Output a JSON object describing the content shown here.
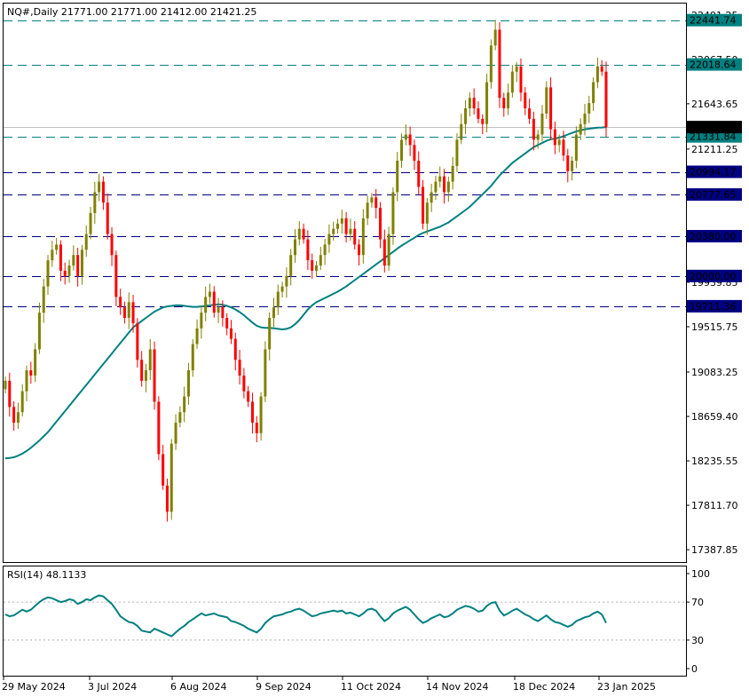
{
  "header": {
    "symbol_text": "NQ#,Daily  21771.00 21771.00 21412.00 21421.25",
    "rsi_label": "RSI(14) 48.1133"
  },
  "chart_data": [
    {
      "type": "candlestick",
      "symbol": "NQ#",
      "timeframe": "Daily",
      "ohlc_last": {
        "open": 21771.0,
        "high": 21771.0,
        "low": 21412.0,
        "close": 21421.25
      },
      "y_ticks": [
        22491.25,
        22067.5,
        21643.65,
        21211.25,
        20779.4,
        20355.55,
        19939.85,
        19515.75,
        19083.25,
        18659.4,
        18235.55,
        17811.7,
        17387.85
      ],
      "y_range": [
        17270,
        22600
      ],
      "x_ticks": [
        "29 May 2024",
        "3 Jul 2024",
        "6 Aug 2024",
        "9 Sep 2024",
        "11 Oct 2024",
        "14 Nov 2024",
        "18 Dec 2024",
        "23 Jan 2025"
      ],
      "levels": [
        {
          "value": 22441.74,
          "label": "22441.74",
          "color": "#008080"
        },
        {
          "value": 22018.64,
          "label": "22018.64",
          "color": "#008080"
        },
        {
          "value": 21331.84,
          "label": "21331.84",
          "color": "#008080"
        },
        {
          "value": 20994.17,
          "label": "20994.17",
          "color": "#000080"
        },
        {
          "value": 20777.65,
          "label": "20777.65",
          "color": "#000080"
        },
        {
          "value": 20380.0,
          "label": "20380.00",
          "color": "#000080"
        },
        {
          "value": 20000.0,
          "label": "20000.00",
          "color": "#000080"
        },
        {
          "value": 19711.36,
          "label": "19711.36",
          "color": "#000080"
        }
      ],
      "current_price": {
        "value": 21421.25,
        "label": "21421.25"
      },
      "colors": {
        "up": "#808000",
        "down": "#ff0000",
        "ma": "#008080",
        "grid": "#c0c0c0"
      },
      "closes": [
        19000,
        18750,
        18600,
        18700,
        18900,
        19100,
        19050,
        19300,
        19650,
        19900,
        20150,
        20250,
        20300,
        20050,
        20000,
        20100,
        20200,
        20000,
        20250,
        20400,
        20600,
        20800,
        20900,
        20700,
        20400,
        20200,
        19800,
        19700,
        19600,
        19750,
        19550,
        19200,
        19000,
        19100,
        19300,
        18800,
        18300,
        18000,
        17750,
        18400,
        18600,
        18700,
        18850,
        19100,
        19350,
        19500,
        19650,
        19800,
        19850,
        19650,
        19700,
        19600,
        19500,
        19400,
        19200,
        19050,
        18900,
        18800,
        18600,
        18500,
        18850,
        19300,
        19600,
        19700,
        19850,
        19900,
        20000,
        20200,
        20350,
        20450,
        20350,
        20150,
        20050,
        20100,
        20200,
        20300,
        20400,
        20450,
        20500,
        20550,
        20400,
        20450,
        20300,
        20200,
        20550,
        20700,
        20750,
        20650,
        20350,
        20100,
        20400,
        20800,
        21100,
        21300,
        21350,
        21250,
        21100,
        20850,
        20500,
        20700,
        20800,
        20900,
        20950,
        20800,
        20900,
        21050,
        21300,
        21450,
        21600,
        21700,
        21600,
        21500,
        21450,
        21850,
        22200,
        22350,
        21700,
        21600,
        21750,
        21950,
        22000,
        21750,
        21600,
        21500,
        21300,
        21350,
        21550,
        21800,
        21400,
        21250,
        21300,
        21150,
        21000,
        21100,
        21350,
        21450,
        21550,
        21650,
        21850,
        22000,
        21950,
        21420
      ],
      "ma_values": [
        18260,
        18263,
        18270,
        18285,
        18305,
        18330,
        18360,
        18395,
        18430,
        18470,
        18510,
        18560,
        18610,
        18660,
        18710,
        18760,
        18810,
        18860,
        18910,
        18960,
        19010,
        19060,
        19110,
        19160,
        19210,
        19260,
        19310,
        19360,
        19410,
        19460,
        19510,
        19540,
        19570,
        19600,
        19630,
        19660,
        19680,
        19700,
        19710,
        19715,
        19720,
        19720,
        19715,
        19710,
        19705,
        19705,
        19710,
        19715,
        19720,
        19725,
        19730,
        19725,
        19715,
        19700,
        19680,
        19655,
        19625,
        19590,
        19555,
        19525,
        19510,
        19505,
        19505,
        19500,
        19495,
        19490,
        19495,
        19510,
        19540,
        19580,
        19630,
        19680,
        19720,
        19750,
        19770,
        19790,
        19810,
        19830,
        19850,
        19875,
        19900,
        19930,
        19960,
        19990,
        20020,
        20050,
        20080,
        20110,
        20140,
        20170,
        20200,
        20230,
        20260,
        20290,
        20315,
        20340,
        20365,
        20390,
        20410,
        20425,
        20440,
        20455,
        20470,
        20490,
        20510,
        20540,
        20570,
        20600,
        20630,
        20660,
        20700,
        20740,
        20780,
        20820,
        20860,
        20910,
        20960,
        21000,
        21040,
        21080,
        21110,
        21140,
        21170,
        21200,
        21230,
        21250,
        21270,
        21290,
        21305,
        21310,
        21320,
        21335,
        21350,
        21365,
        21380,
        21390,
        21400,
        21405,
        21410,
        21415,
        21417,
        21421
      ]
    },
    {
      "type": "line",
      "name": "RSI(14)",
      "value": 48.1133,
      "y_ticks": [
        100,
        70,
        30,
        0
      ],
      "y_range": [
        0,
        100
      ],
      "levels": [
        70,
        30
      ],
      "color": "#008080",
      "values": [
        57,
        55,
        56,
        59,
        62,
        60,
        62,
        66,
        70,
        73,
        75,
        74,
        72,
        70,
        71,
        73,
        72,
        68,
        70,
        73,
        72,
        75,
        77,
        76,
        72,
        68,
        62,
        55,
        52,
        49,
        48,
        45,
        40,
        39,
        38,
        42,
        40,
        38,
        36,
        34,
        38,
        42,
        45,
        49,
        52,
        55,
        58,
        56,
        57,
        58,
        56,
        55,
        54,
        50,
        49,
        47,
        45,
        42,
        40,
        38,
        42,
        48,
        52,
        55,
        56,
        57,
        59,
        60,
        62,
        63,
        61,
        58,
        55,
        56,
        58,
        59,
        60,
        61,
        60,
        61,
        58,
        59,
        57,
        55,
        58,
        62,
        63,
        61,
        55,
        50,
        53,
        58,
        61,
        63,
        65,
        62,
        57,
        52,
        48,
        50,
        53,
        55,
        57,
        54,
        55,
        58,
        62,
        64,
        66,
        65,
        63,
        60,
        61,
        66,
        69,
        70,
        61,
        56,
        58,
        61,
        63,
        60,
        57,
        55,
        52,
        50,
        53,
        56,
        52,
        49,
        48,
        46,
        44,
        46,
        50,
        52,
        54,
        55,
        58,
        60,
        57,
        48
      ]
    }
  ]
}
